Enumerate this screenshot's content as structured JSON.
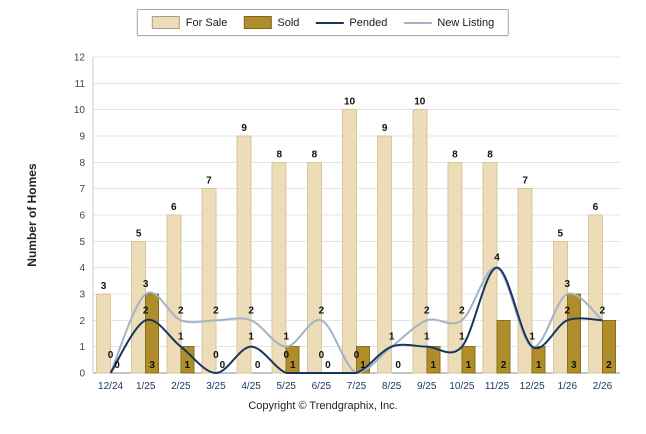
{
  "footer": {
    "copyright": "Copyright © Trendgraphix, Inc."
  },
  "chart_data": {
    "type": "bar",
    "title": "",
    "ylabel": "Number of Homes",
    "xlabel": "",
    "ylim": [
      0,
      12
    ],
    "ytick_step": 1,
    "grid": true,
    "legend_position": "top",
    "categories": [
      "12/24",
      "1/25",
      "2/25",
      "3/25",
      "4/25",
      "5/25",
      "6/25",
      "7/25",
      "8/25",
      "9/25",
      "10/25",
      "11/25",
      "12/25",
      "1/26",
      "2/26"
    ],
    "series": [
      {
        "name": "For Sale",
        "render": "bar",
        "color": "#ECDCB8",
        "values": [
          3,
          5,
          6,
          7,
          9,
          8,
          8,
          10,
          9,
          10,
          8,
          8,
          7,
          5,
          6
        ]
      },
      {
        "name": "Sold",
        "render": "bar",
        "color": "#AF8D2B",
        "values": [
          0,
          3,
          1,
          0,
          0,
          1,
          0,
          1,
          0,
          1,
          1,
          2,
          1,
          3,
          2
        ]
      },
      {
        "name": "Pended",
        "render": "line",
        "color": "#17365D",
        "values": [
          0,
          2,
          1,
          0,
          1,
          0,
          0,
          0,
          1,
          1,
          1,
          4,
          1,
          2,
          2
        ]
      },
      {
        "name": "New Listing",
        "render": "line",
        "color": "#A3B3C6",
        "values": [
          0,
          3,
          2,
          2,
          2,
          1,
          2,
          0,
          1,
          2,
          2,
          4,
          1,
          3,
          2
        ]
      }
    ]
  }
}
